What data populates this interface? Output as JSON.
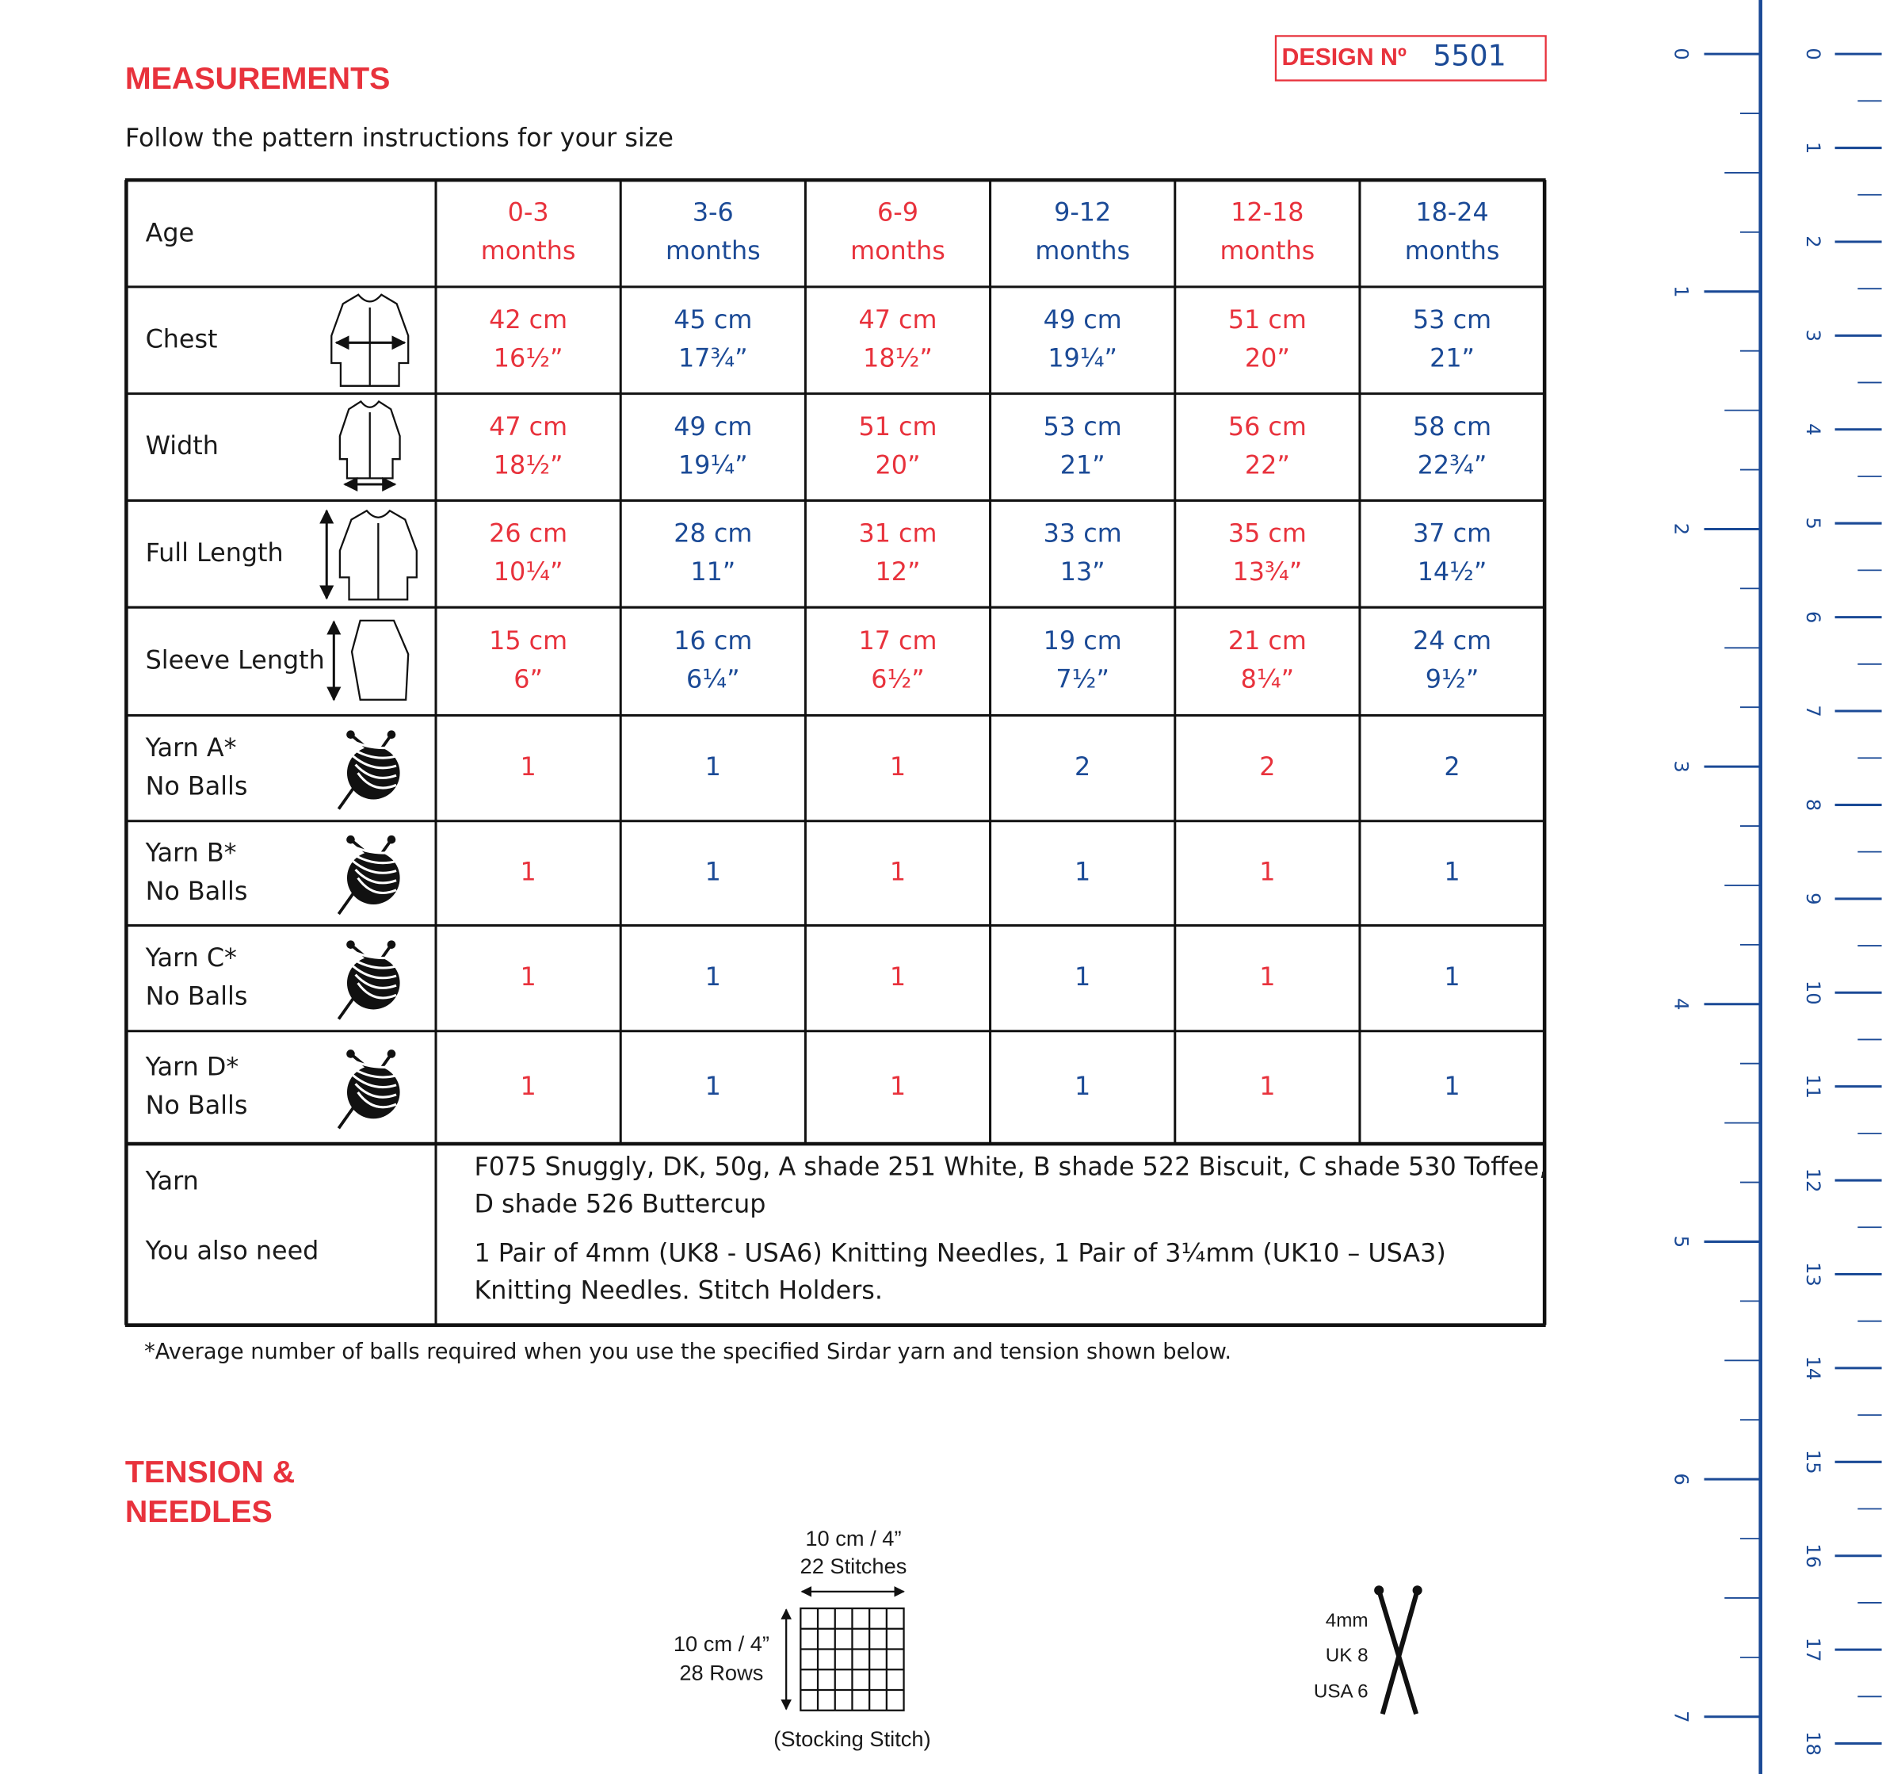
{
  "design": {
    "label": "DESIGN Nº",
    "number": "5501"
  },
  "measurements": {
    "title": "MEASUREMENTS",
    "subtitle": "Follow the pattern instructions for your size"
  },
  "table": {
    "column_colors": [
      "#e8323c",
      "#1b4a96"
    ],
    "header": {
      "label": "Age",
      "sizes": [
        [
          "0-3",
          "months"
        ],
        [
          "3-6",
          "months"
        ],
        [
          "6-9",
          "months"
        ],
        [
          "9-12",
          "months"
        ],
        [
          "12-18",
          "months"
        ],
        [
          "18-24",
          "months"
        ]
      ]
    },
    "rows": [
      {
        "label": [
          "Chest"
        ],
        "cells": [
          [
            "42 cm",
            "16½”"
          ],
          [
            "45 cm",
            "17¾”"
          ],
          [
            "47 cm",
            "18½”"
          ],
          [
            "49 cm",
            "19¼”"
          ],
          [
            "51 cm",
            "20”"
          ],
          [
            "53 cm",
            "21”"
          ]
        ]
      },
      {
        "label": [
          "Width"
        ],
        "cells": [
          [
            "47 cm",
            "18½”"
          ],
          [
            "49 cm",
            "19¼”"
          ],
          [
            "51 cm",
            "20”"
          ],
          [
            "53 cm",
            "21”"
          ],
          [
            "56 cm",
            "22”"
          ],
          [
            "58 cm",
            "22¾”"
          ]
        ]
      },
      {
        "label": [
          "Full Length"
        ],
        "cells": [
          [
            "26 cm",
            "10¼”"
          ],
          [
            "28 cm",
            "11”"
          ],
          [
            "31 cm",
            "12”"
          ],
          [
            "33 cm",
            "13”"
          ],
          [
            "35 cm",
            "13¾”"
          ],
          [
            "37 cm",
            "14½”"
          ]
        ]
      },
      {
        "label": [
          "Sleeve Length"
        ],
        "cells": [
          [
            "15 cm",
            "6”"
          ],
          [
            "16 cm",
            "6¼”"
          ],
          [
            "17 cm",
            "6½”"
          ],
          [
            "19 cm",
            "7½”"
          ],
          [
            "21 cm",
            "8¼”"
          ],
          [
            "24 cm",
            "9½”"
          ]
        ]
      },
      {
        "label": [
          "Yarn A*",
          "No Balls"
        ],
        "cells": [
          [
            "1"
          ],
          [
            "1"
          ],
          [
            "1"
          ],
          [
            "2"
          ],
          [
            "2"
          ],
          [
            "2"
          ]
        ]
      },
      {
        "label": [
          "Yarn B*",
          "No Balls"
        ],
        "cells": [
          [
            "1"
          ],
          [
            "1"
          ],
          [
            "1"
          ],
          [
            "1"
          ],
          [
            "1"
          ],
          [
            "1"
          ]
        ]
      },
      {
        "label": [
          "Yarn C*",
          "No Balls"
        ],
        "cells": [
          [
            "1"
          ],
          [
            "1"
          ],
          [
            "1"
          ],
          [
            "1"
          ],
          [
            "1"
          ],
          [
            "1"
          ]
        ]
      },
      {
        "label": [
          "Yarn D*",
          "No Balls"
        ],
        "cells": [
          [
            "1"
          ],
          [
            "1"
          ],
          [
            "1"
          ],
          [
            "1"
          ],
          [
            "1"
          ],
          [
            "1"
          ]
        ]
      }
    ],
    "yarn": {
      "label": "Yarn",
      "text": [
        "F075 Snuggly, DK, 50g, A shade 251 White, B shade 522 Biscuit, C shade 530 Toffee,",
        "D shade 526 Buttercup"
      ]
    },
    "also_need": {
      "label": "You also need",
      "text": [
        "1 Pair of 4mm (UK8 - USA6) Knitting Needles, 1 Pair of 3¼mm (UK10 – USA3)",
        "Knitting Needles. Stitch Holders."
      ]
    }
  },
  "footnote": "*Average number of balls required when you use the specified Sirdar yarn and tension shown below.",
  "tension": {
    "title": [
      "TENSION &",
      "NEEDLES"
    ],
    "width": [
      "10 cm / 4”",
      "22 Stitches"
    ],
    "height": [
      "10 cm / 4”",
      "28 Rows"
    ],
    "stitch": "(Stocking Stitch)",
    "needles": [
      "4mm",
      "UK 8",
      "USA 6"
    ]
  },
  "ruler": {
    "inches": [
      0,
      1,
      2,
      3,
      4,
      5,
      6,
      7
    ],
    "cm": [
      0,
      1,
      2,
      3,
      4,
      5,
      6,
      7,
      8,
      9,
      10,
      11,
      12,
      13,
      14,
      15,
      16,
      17,
      18
    ]
  }
}
